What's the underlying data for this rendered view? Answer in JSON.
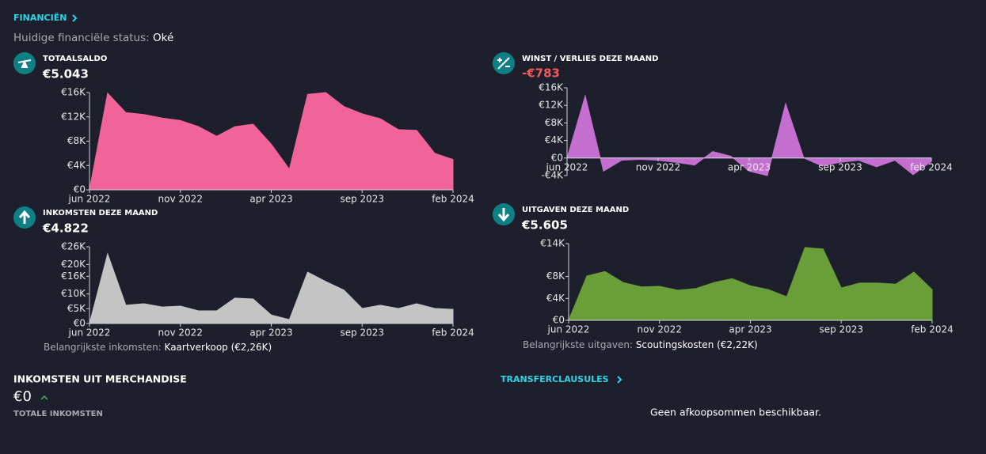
{
  "header": {
    "title": "FINANCIËN",
    "status_label": "Huidige financiële status:",
    "status_value": "Oké"
  },
  "chart_data": [
    {
      "type": "area",
      "title": "TOTAALSALDO",
      "headline": "€5.043",
      "color": "#f0649a",
      "categories": [
        "jun 2022",
        null,
        null,
        null,
        null,
        "nov 2022",
        null,
        null,
        null,
        null,
        "apr 2023",
        null,
        null,
        null,
        null,
        "sep 2023",
        null,
        null,
        null,
        null,
        "feb 2024"
      ],
      "values": [
        0,
        15.9,
        12.7,
        12.4,
        11.8,
        11.4,
        10.4,
        8.8,
        10.4,
        10.8,
        7.5,
        3.4,
        15.7,
        16.0,
        13.7,
        12.5,
        11.7,
        9.9,
        9.8,
        6.0,
        5.0
      ],
      "ylim": [
        0,
        16
      ],
      "yticks": [
        {
          "value": 0,
          "label": "€0"
        },
        {
          "value": 4,
          "label": "€4K"
        },
        {
          "value": 8,
          "label": "€8K"
        },
        {
          "value": 12,
          "label": "€12K"
        },
        {
          "value": 16,
          "label": "€16K"
        }
      ]
    },
    {
      "type": "area",
      "title": "WINST / VERLIES DEZE MAAND",
      "headline": "-€783",
      "headline_color": "#f25a5a",
      "color": "#c46ed0",
      "categories": [
        "jun 2022",
        null,
        null,
        null,
        null,
        "nov 2022",
        null,
        null,
        null,
        null,
        "apr 2023",
        null,
        null,
        null,
        null,
        "sep 2023",
        null,
        null,
        null,
        null,
        "feb 2024"
      ],
      "values": [
        0,
        14.2,
        -3,
        -0.5,
        -0.3,
        -0.5,
        -1,
        -1.6,
        1.5,
        0.4,
        -3,
        -4,
        12.4,
        0,
        -1.8,
        -1,
        -0.5,
        -2,
        -0.5,
        -3.8,
        -0.8
      ],
      "ylim": [
        -4,
        16
      ],
      "yticks": [
        {
          "value": -4,
          "label": "-€4K"
        },
        {
          "value": 0,
          "label": "€0"
        },
        {
          "value": 4,
          "label": "€4K"
        },
        {
          "value": 8,
          "label": "€8K"
        },
        {
          "value": 12,
          "label": "€12K"
        },
        {
          "value": 16,
          "label": "€16K"
        }
      ]
    },
    {
      "type": "area",
      "title": "INKOMSTEN DEZE MAAND",
      "headline": "€4.822",
      "color": "#c4c4c4",
      "note_label": "Belangrijkste inkomsten:",
      "note_value": "Kaartverkoop (€2,26K)",
      "categories": [
        "jun 2022",
        null,
        null,
        null,
        null,
        "nov 2022",
        null,
        null,
        null,
        null,
        "apr 2023",
        null,
        null,
        null,
        null,
        "sep 2023",
        null,
        null,
        null,
        null,
        "feb 2024"
      ],
      "values": [
        0,
        23.6,
        6.2,
        6.7,
        5.6,
        5.9,
        4.3,
        4.3,
        8.6,
        8.3,
        2.9,
        1.3,
        17.4,
        14.2,
        11.3,
        5.1,
        6.2,
        5.1,
        6.7,
        5.1,
        4.8
      ],
      "ylim": [
        0,
        26
      ],
      "yticks": [
        {
          "value": 0,
          "label": "€0"
        },
        {
          "value": 5,
          "label": "€5K"
        },
        {
          "value": 10,
          "label": "€10K"
        },
        {
          "value": 16,
          "label": "€16K"
        },
        {
          "value": 20,
          "label": "€20K"
        },
        {
          "value": 26,
          "label": "€26K"
        }
      ]
    },
    {
      "type": "area",
      "title": "UITGAVEN DEZE MAAND",
      "headline": "€5.605",
      "color": "#6a9e38",
      "note_label": "Belangrijkste uitgaven:",
      "note_value": "Scoutingskosten (€2,22K)",
      "categories": [
        "jun 2022",
        null,
        null,
        null,
        null,
        "nov 2022",
        null,
        null,
        null,
        null,
        "apr 2023",
        null,
        null,
        null,
        null,
        "sep 2023",
        null,
        null,
        null,
        null,
        "feb 2024"
      ],
      "values": [
        0,
        8.1,
        8.9,
        6.9,
        6.1,
        6.2,
        5.5,
        5.8,
        6.9,
        7.6,
        6.3,
        5.6,
        4.3,
        13.3,
        13.0,
        5.9,
        6.8,
        6.8,
        6.6,
        8.8,
        5.6
      ],
      "ylim": [
        0,
        14
      ],
      "yticks": [
        {
          "value": 0,
          "label": "€0"
        },
        {
          "value": 4,
          "label": "€4K"
        },
        {
          "value": 8,
          "label": "€8K"
        },
        {
          "value": 14,
          "label": "€14K"
        }
      ]
    }
  ],
  "merchandise": {
    "title": "INKOMSTEN UIT MERCHANDISE",
    "value": "€0",
    "caption": "TOTALE INKOMSTEN"
  },
  "transfers": {
    "title": "TRANSFERCLAUSULES",
    "message": "Geen afkoopsommen beschikbaar."
  }
}
